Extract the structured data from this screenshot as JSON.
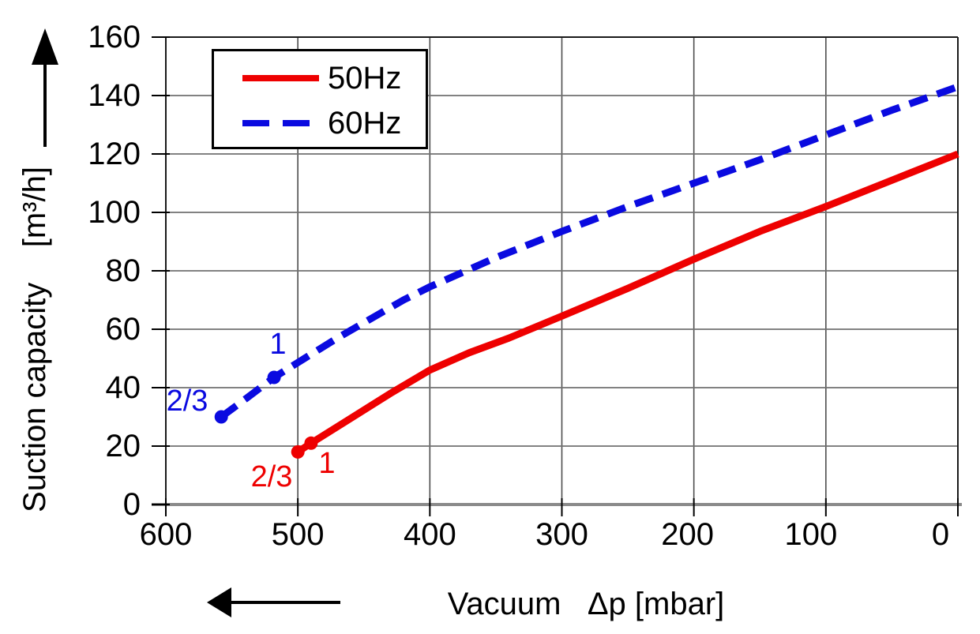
{
  "chart_data": {
    "type": "line",
    "title": "",
    "x_axis": {
      "label": "Vacuum   Δp [mbar]",
      "min": 0,
      "max": 600,
      "reversed": true,
      "ticks": [
        600,
        500,
        400,
        300,
        200,
        100,
        0
      ],
      "arrow_direction": "left"
    },
    "y_axis": {
      "label": "Suction capacity    [m³/h]",
      "min": 0,
      "max": 160,
      "ticks": [
        0,
        20,
        40,
        60,
        80,
        100,
        120,
        140,
        160
      ],
      "arrow_direction": "up"
    },
    "grid": "on",
    "legend_position": "top-left",
    "series": [
      {
        "name": "50Hz",
        "color": "#ee0000",
        "style": "solid",
        "points": [
          [
            500,
            18
          ],
          [
            490,
            21
          ],
          [
            460,
            29.5
          ],
          [
            430,
            38
          ],
          [
            400,
            46
          ],
          [
            370,
            52
          ],
          [
            340,
            57
          ],
          [
            300,
            64.5
          ],
          [
            250,
            74
          ],
          [
            200,
            84
          ],
          [
            150,
            93.5
          ],
          [
            100,
            102
          ],
          [
            50,
            111
          ],
          [
            0,
            120
          ]
        ],
        "markers": [
          [
            500,
            18
          ],
          [
            490,
            21
          ]
        ]
      },
      {
        "name": "60Hz",
        "color": "#0a0ae0",
        "style": "dashed",
        "points": [
          [
            558,
            30
          ],
          [
            540,
            36
          ],
          [
            518,
            43.5
          ],
          [
            495,
            50
          ],
          [
            470,
            57
          ],
          [
            445,
            63.5
          ],
          [
            420,
            70
          ],
          [
            400,
            74.5
          ],
          [
            375,
            79.5
          ],
          [
            350,
            84.5
          ],
          [
            325,
            89
          ],
          [
            300,
            93.5
          ],
          [
            250,
            102
          ],
          [
            200,
            110
          ],
          [
            150,
            118
          ],
          [
            100,
            126.5
          ],
          [
            50,
            135
          ],
          [
            0,
            143
          ]
        ],
        "markers": [
          [
            558,
            30
          ],
          [
            518,
            43.5
          ]
        ]
      }
    ],
    "annotations": [
      {
        "series": "50Hz",
        "label": "2/3",
        "x": 520,
        "y": 9.5,
        "color": "#ee0000"
      },
      {
        "series": "50Hz",
        "label": "1",
        "x": 478,
        "y": 14,
        "color": "#ee0000"
      },
      {
        "series": "60Hz",
        "label": "2/3",
        "x": 584,
        "y": 35.5,
        "color": "#0a0ae0"
      },
      {
        "series": "60Hz",
        "label": "1",
        "x": 515,
        "y": 55,
        "color": "#0a0ae0"
      }
    ]
  }
}
